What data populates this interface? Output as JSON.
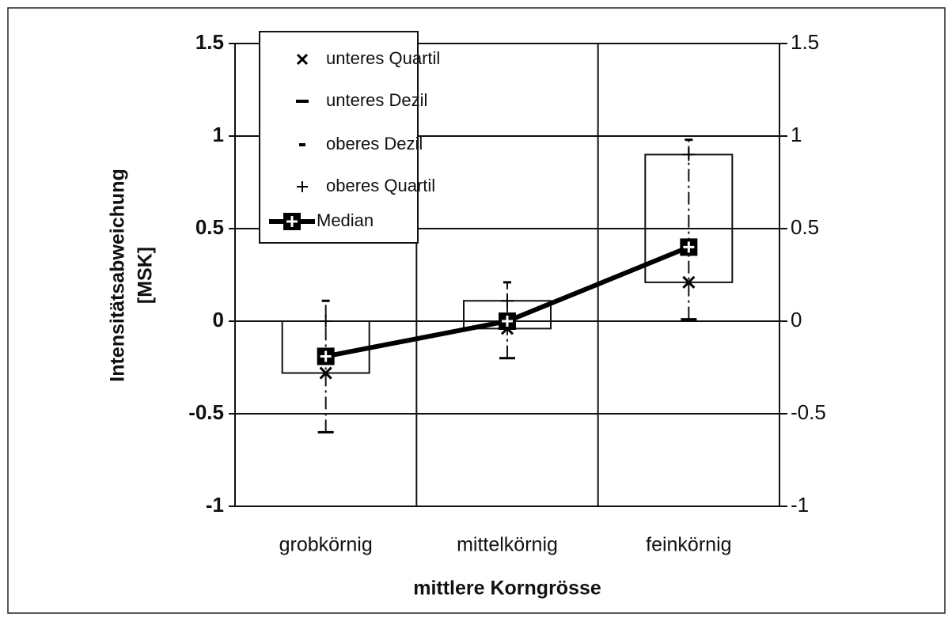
{
  "chart_data": {
    "type": "box",
    "ylabel": [
      "Intensitätsabweichung",
      "[MSK]"
    ],
    "xlabel": "mittlere Korngrösse",
    "categories": [
      "grobkörnig",
      "mittelkörnig",
      "feinkörnig"
    ],
    "series": [
      {
        "name": "unteres Quartil",
        "color": "#000000",
        "values": [
          -0.28,
          -0.04,
          0.21
        ]
      },
      {
        "name": "unteres Dezil",
        "color": "#000000",
        "values": [
          -0.6,
          -0.2,
          0.01
        ]
      },
      {
        "name": "oberes Dezil",
        "color": "#000000",
        "values": [
          0.11,
          0.21,
          0.98
        ]
      },
      {
        "name": "oberes Quartil",
        "color": "#000000",
        "values": [
          0,
          0.11,
          0.9
        ]
      },
      {
        "name": "Median",
        "color": "#000000",
        "values": [
          -0.19,
          0,
          0.4
        ]
      }
    ],
    "ylim": [
      -1,
      1.5
    ],
    "yticks": [
      -1,
      -0.5,
      0,
      0.5,
      1,
      1.5
    ],
    "y2lim": [
      -1,
      1.5
    ],
    "y2ticks": [
      -1,
      -0.5,
      0,
      0.5,
      1,
      1.5
    ],
    "grid": true,
    "legend": "top-left"
  }
}
